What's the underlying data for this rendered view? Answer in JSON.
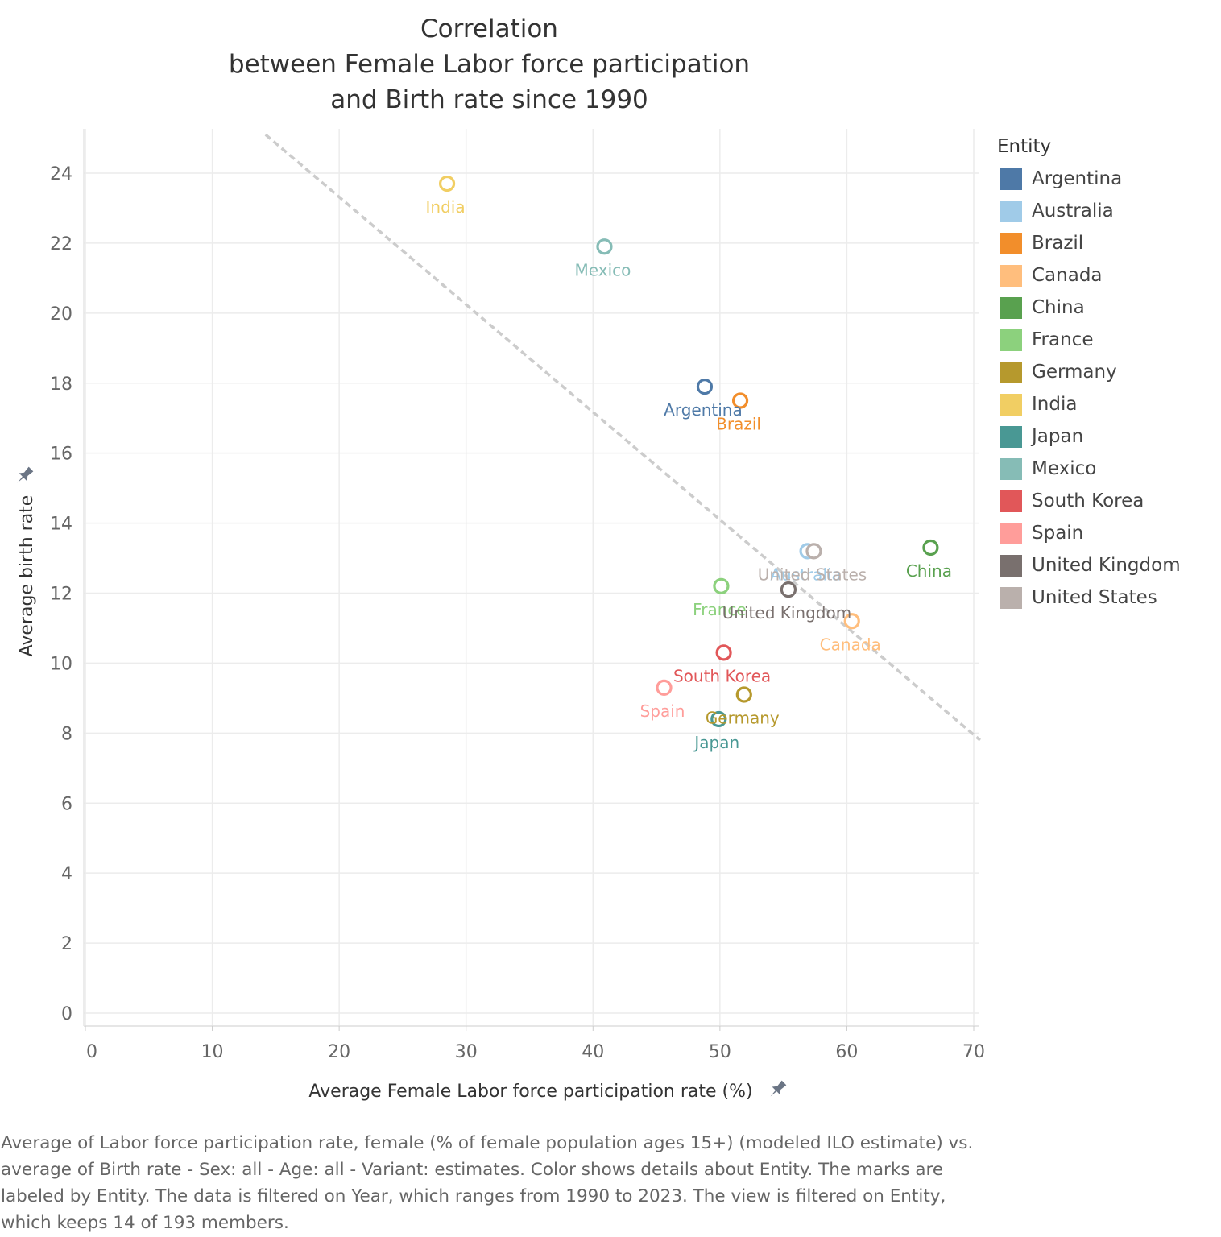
{
  "title_lines": [
    "Correlation",
    "between Female Labor force participation",
    "and Birth rate since 1990"
  ],
  "legend": {
    "title": "Entity"
  },
  "colors": {
    "Argentina": "#4e79a7",
    "Australia": "#a0cbe8",
    "Brazil": "#f28e2b",
    "Canada": "#ffbe7d",
    "China": "#59a14f",
    "France": "#8cd17d",
    "Germany": "#b6992d",
    "India": "#f1ce63",
    "Japan": "#499894",
    "Mexico": "#86bcb6",
    "South Korea": "#e15759",
    "Spain": "#ff9d9a",
    "United Kingdom": "#79706e",
    "United States": "#bab0ac",
    "trend": "#cccccc",
    "pin": "#6b7585"
  },
  "chart_data": {
    "type": "scatter",
    "xlabel": "Average Female Labor force participation rate (%)",
    "ylabel": "Average birth rate",
    "xlim": [
      0,
      70
    ],
    "ylim": [
      0,
      25
    ],
    "x_ticks": [
      0,
      10,
      20,
      30,
      40,
      50,
      60,
      70
    ],
    "y_ticks": [
      0,
      2,
      4,
      6,
      8,
      10,
      12,
      14,
      16,
      18,
      20,
      22,
      24
    ],
    "grid": true,
    "legend_position": "right",
    "trend_line": {
      "style": "dashed",
      "x": [
        14.2,
        70.5
      ],
      "y": [
        25.1,
        7.8
      ]
    },
    "points": [
      {
        "entity": "India",
        "x": 28.5,
        "y": 23.7
      },
      {
        "entity": "Mexico",
        "x": 40.9,
        "y": 21.9
      },
      {
        "entity": "Argentina",
        "x": 48.8,
        "y": 17.9
      },
      {
        "entity": "Brazil",
        "x": 51.6,
        "y": 17.5
      },
      {
        "entity": "Australia",
        "x": 56.9,
        "y": 13.2
      },
      {
        "entity": "United States",
        "x": 57.4,
        "y": 13.2
      },
      {
        "entity": "China",
        "x": 66.6,
        "y": 13.3
      },
      {
        "entity": "France",
        "x": 50.1,
        "y": 12.2
      },
      {
        "entity": "United Kingdom",
        "x": 55.4,
        "y": 12.1
      },
      {
        "entity": "Canada",
        "x": 60.4,
        "y": 11.2
      },
      {
        "entity": "South Korea",
        "x": 50.3,
        "y": 10.3
      },
      {
        "entity": "Spain",
        "x": 45.6,
        "y": 9.3
      },
      {
        "entity": "Germany",
        "x": 51.9,
        "y": 9.1
      },
      {
        "entity": "Japan",
        "x": 49.9,
        "y": 8.4
      }
    ]
  },
  "caption": "Average of Labor force participation rate, female (% of female population ages 15+) (modeled ILO estimate) vs. average of Birth rate - Sex: all - Age: all - Variant: estimates.  Color shows details about Entity.  The marks are labeled by Entity. The data is filtered on Year, which ranges from 1990 to 2023. The view is filtered on Entity, which keeps 14 of 193 members."
}
